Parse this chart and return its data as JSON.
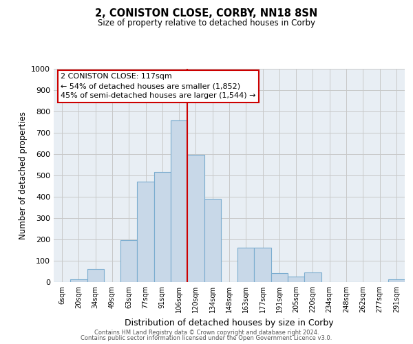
{
  "title": "2, CONISTON CLOSE, CORBY, NN18 8SN",
  "subtitle": "Size of property relative to detached houses in Corby",
  "xlabel": "Distribution of detached houses by size in Corby",
  "ylabel": "Number of detached properties",
  "footer_line1": "Contains HM Land Registry data © Crown copyright and database right 2024.",
  "footer_line2": "Contains public sector information licensed under the Open Government Licence v3.0.",
  "bin_labels": [
    "6sqm",
    "20sqm",
    "34sqm",
    "49sqm",
    "63sqm",
    "77sqm",
    "91sqm",
    "106sqm",
    "120sqm",
    "134sqm",
    "148sqm",
    "163sqm",
    "177sqm",
    "191sqm",
    "205sqm",
    "220sqm",
    "234sqm",
    "248sqm",
    "262sqm",
    "277sqm",
    "291sqm"
  ],
  "bar_values": [
    0,
    13,
    62,
    0,
    196,
    470,
    516,
    757,
    597,
    390,
    0,
    160,
    160,
    43,
    25,
    46,
    0,
    0,
    0,
    0,
    13
  ],
  "bar_color": "#c8d8e8",
  "bar_edge_color": "#7aaccf",
  "marker_line_color": "#cc0000",
  "marker_bar_index": 7,
  "ylim": [
    0,
    1000
  ],
  "yticks": [
    0,
    100,
    200,
    300,
    400,
    500,
    600,
    700,
    800,
    900,
    1000
  ],
  "annotation_title": "2 CONISTON CLOSE: 117sqm",
  "annotation_line1": "← 54% of detached houses are smaller (1,852)",
  "annotation_line2": "45% of semi-detached houses are larger (1,544) →",
  "annotation_box_color": "#ffffff",
  "annotation_box_edge": "#cc0000",
  "grid_color": "#c8c8c8",
  "bg_color": "#e8eef4"
}
